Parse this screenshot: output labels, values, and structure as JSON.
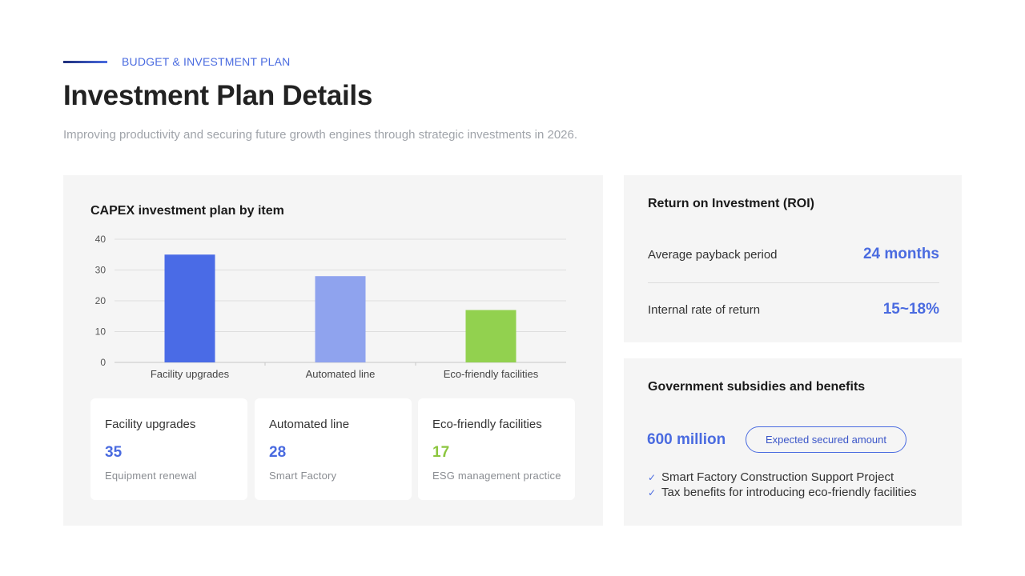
{
  "header": {
    "eyebrow": "BUDGET & INVESTMENT PLAN",
    "title": "Investment Plan Details",
    "subtitle": "Improving productivity and securing future growth engines through strategic investments in 2026."
  },
  "chart_data": {
    "type": "bar",
    "title": "CAPEX investment plan by item",
    "xlabel": "",
    "ylabel": "",
    "categories": [
      "Facility upgrades",
      "Automated line",
      "Eco-friendly facilities"
    ],
    "values": [
      35,
      28,
      17
    ],
    "ylim": [
      0,
      40
    ],
    "yticks": [
      0,
      10,
      20,
      30,
      40
    ],
    "bar_colors": [
      "#4a6be6",
      "#8fa3ee",
      "#92d14f"
    ],
    "grid": true,
    "legend": "none"
  },
  "cards": [
    {
      "label": "Facility upgrades",
      "value": "35",
      "sub": "Equipment renewal",
      "color": "#4a6be0"
    },
    {
      "label": "Automated line",
      "value": "28",
      "sub": "Smart Factory",
      "color": "#4a6be0"
    },
    {
      "label": "Eco-friendly facilities",
      "value": "17",
      "sub": "ESG management practice",
      "color": "#8cc63f"
    }
  ],
  "roi": {
    "title": "Return on Investment (ROI)",
    "rows": [
      {
        "label": "Average payback period",
        "value": "24 months"
      },
      {
        "label": "Internal rate of return",
        "value": "15~18%"
      }
    ]
  },
  "gov": {
    "title": "Government subsidies and benefits",
    "amount": "600 million",
    "pill": "Expected secured amount",
    "items": [
      "Smart Factory Construction Support Project",
      "Tax benefits for introducing eco-friendly facilities"
    ]
  },
  "colors": {
    "accent": "#4a6be0",
    "green": "#8cc63f",
    "panel": "#f5f5f5"
  }
}
